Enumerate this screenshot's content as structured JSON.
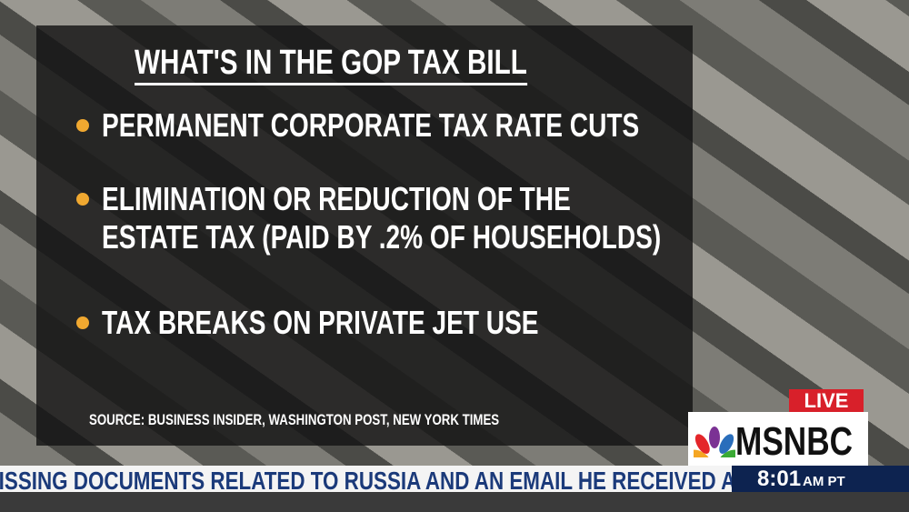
{
  "graphic": {
    "title": "WHAT'S IN THE GOP TAX BILL",
    "bullets": [
      "PERMANENT CORPORATE TAX RATE CUTS",
      "ELIMINATION OR REDUCTION OF THE ESTATE TAX (PAID BY .2% OF HOUSEHOLDS)",
      "TAX BREAKS ON PRIVATE JET USE"
    ],
    "source": "SOURCE: BUSINESS INSIDER, WASHINGTON POST, NEW YORK TIMES"
  },
  "bug": {
    "live": "LIVE",
    "network": "MSNBC"
  },
  "ticker": {
    "text": "MISSING DOCUMENTS RELATED TO RUSSIA AND AN EMAIL HE RECEIVED ABOUT",
    "time": "8:01",
    "zone": "AM PT"
  }
}
